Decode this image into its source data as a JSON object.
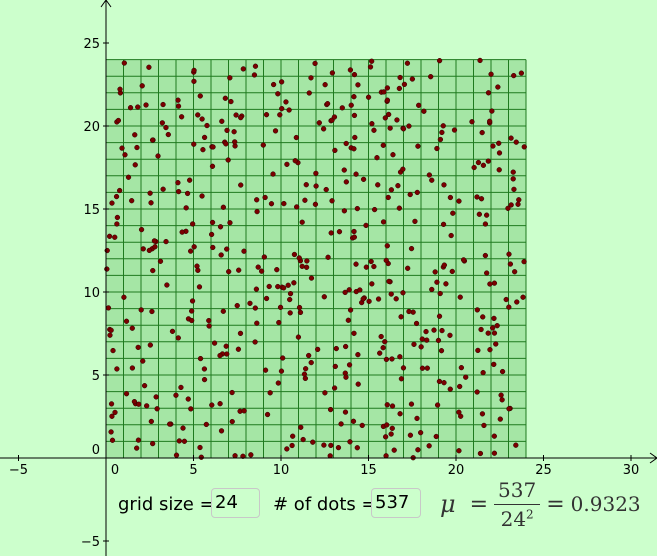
{
  "axes": {
    "x_ticks": [
      {
        "value": -5,
        "label": "−5"
      },
      {
        "value": 0,
        "label": "0"
      },
      {
        "value": 5,
        "label": "5"
      },
      {
        "value": 10,
        "label": "10"
      },
      {
        "value": 15,
        "label": "15"
      },
      {
        "value": 20,
        "label": "20"
      },
      {
        "value": 25,
        "label": "25"
      },
      {
        "value": 30,
        "label": "30"
      }
    ],
    "y_ticks": [
      {
        "value": -5,
        "label": "−5"
      },
      {
        "value": 0,
        "label": "0"
      },
      {
        "value": 5,
        "label": "5"
      },
      {
        "value": 10,
        "label": "10"
      },
      {
        "value": 15,
        "label": "15"
      },
      {
        "value": 20,
        "label": "20"
      },
      {
        "value": 25,
        "label": "25"
      }
    ],
    "x_range": [
      -6,
      31
    ],
    "y_range": [
      -6,
      26
    ]
  },
  "grid": {
    "size": 24,
    "dot_count": 537,
    "line_color": "#1f7a1f",
    "fill_color": "#a5e6a5",
    "dot_color": "#7a0000"
  },
  "controls": {
    "grid_size_label": "grid size =",
    "grid_size_value": "24",
    "dots_label": "# of dots =",
    "dots_value": "537"
  },
  "formula": {
    "symbol": "μ",
    "equals": "=",
    "numerator": "537",
    "denominator_base": "24",
    "denominator_exp": "2",
    "result": "0.9323"
  }
}
